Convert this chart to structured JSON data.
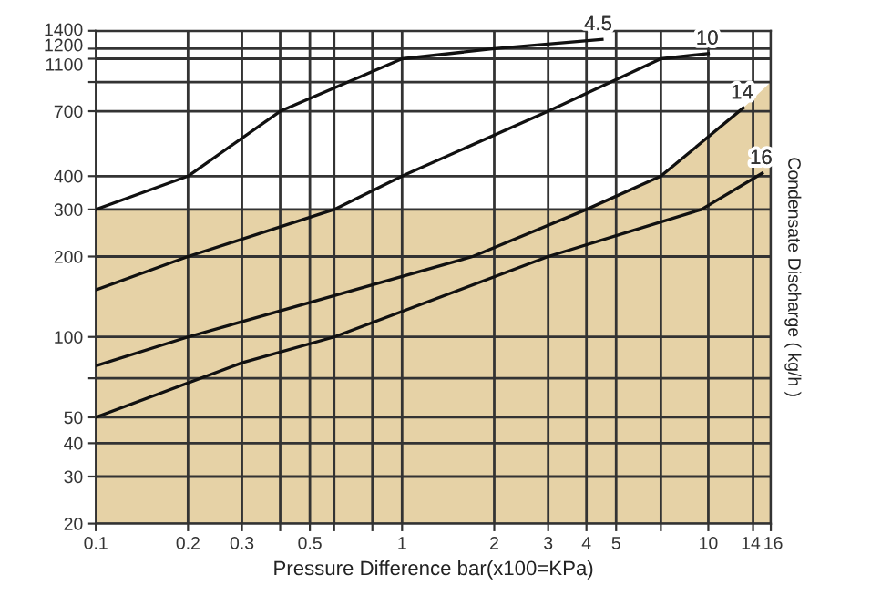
{
  "chart_data": {
    "type": "line",
    "xlabel": "Pressure Difference bar(x100=KPa)",
    "ylabel": "Condensate Discharge ( kg/h )",
    "log": "xy",
    "grid": true,
    "legend": false,
    "marker": "none",
    "line_style": "solid",
    "xlim": [
      0.1,
      16
    ],
    "ylim": [
      20,
      1400
    ],
    "xticks": [
      0.1,
      0.2,
      0.3,
      {
        "value": 0.4,
        "label": null
      },
      0.5,
      {
        "value": 0.6,
        "label": null
      },
      {
        "value": 0.8,
        "label": null
      },
      1,
      2,
      3,
      4,
      5,
      {
        "value": 7,
        "label": null
      },
      10,
      14,
      16
    ],
    "yticks": [
      20,
      30,
      40,
      50,
      {
        "value": 70,
        "label": null
      },
      100,
      200,
      300,
      400,
      700,
      {
        "value": 900,
        "label": null
      },
      1100,
      1200,
      1400
    ],
    "series": [
      {
        "type": "area",
        "color": "#e6d2a6",
        "x": [
          0.1,
          4,
          7,
          13,
          16
        ],
        "values": [
          300,
          300,
          400,
          720,
          900
        ]
      },
      {
        "name": "4.5",
        "color": "#111111",
        "x": [
          0.1,
          0.2,
          0.4,
          1,
          2,
          4.5
        ],
        "values": [
          300,
          400,
          700,
          1100,
          1200,
          1300
        ]
      },
      {
        "name": "10",
        "color": "#111111",
        "x": [
          0.1,
          0.2,
          0.6,
          1,
          3,
          7,
          10
        ],
        "values": [
          150,
          200,
          300,
          400,
          700,
          1100,
          1150
        ]
      },
      {
        "name": "14",
        "color": "#111111",
        "x": [
          0.1,
          0.2,
          1.7,
          4,
          7,
          13
        ],
        "values": [
          78,
          100,
          200,
          300,
          400,
          720
        ]
      },
      {
        "name": "16",
        "color": "#111111",
        "x": [
          0.1,
          0.3,
          0.6,
          3,
          9.5,
          15
        ],
        "values": [
          50,
          80,
          100,
          200,
          300,
          410
        ]
      }
    ]
  }
}
